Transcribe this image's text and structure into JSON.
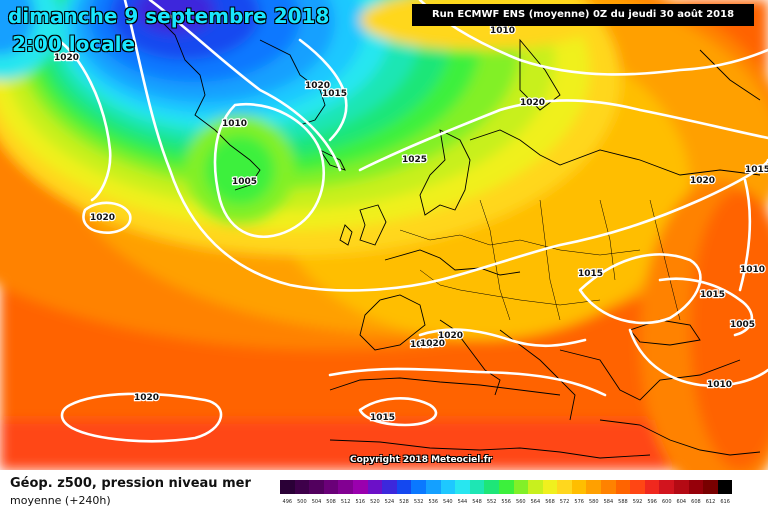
{
  "header": {
    "date": "dimanche 9 septembre 2018",
    "time": "2:00 locale",
    "run": "Run ECMWF ENS (moyenne) 0Z du jeudi 30 août 2018"
  },
  "copyright": "Copyright 2018 Meteociel.fr",
  "footer": {
    "title": "Géop. z500, pression niveau mer",
    "subtitle": "moyenne   (+240h)"
  },
  "pressure_labels": [
    {
      "text": "1020"
    },
    {
      "text": "1010"
    },
    {
      "text": "1020"
    },
    {
      "text": "1015"
    },
    {
      "text": "1010"
    },
    {
      "text": "1005"
    },
    {
      "text": "1020"
    },
    {
      "text": "1020"
    },
    {
      "text": "1025"
    },
    {
      "text": "1020"
    },
    {
      "text": "1015"
    },
    {
      "text": "1020"
    },
    {
      "text": "1015"
    },
    {
      "text": "1010"
    },
    {
      "text": "1015"
    },
    {
      "text": "1005"
    },
    {
      "text": "1020"
    },
    {
      "text": "1020"
    },
    {
      "text": "1020"
    },
    {
      "text": "1015"
    },
    {
      "text": "1010"
    }
  ],
  "colors": {
    "isobar": "#ffffff",
    "coastline": "#000000"
  },
  "geopotential_scale": [
    {
      "value": "496",
      "color": "#2a0036"
    },
    {
      "value": "500",
      "color": "#3e004a"
    },
    {
      "value": "504",
      "color": "#52005e"
    },
    {
      "value": "508",
      "color": "#6a0078"
    },
    {
      "value": "512",
      "color": "#820092"
    },
    {
      "value": "516",
      "color": "#9a00ae"
    },
    {
      "value": "520",
      "color": "#6c10c8"
    },
    {
      "value": "524",
      "color": "#3c28dc"
    },
    {
      "value": "528",
      "color": "#1448f0"
    },
    {
      "value": "532",
      "color": "#0a78ff"
    },
    {
      "value": "536",
      "color": "#14a0ff"
    },
    {
      "value": "540",
      "color": "#1ec8ff"
    },
    {
      "value": "544",
      "color": "#28e6f0"
    },
    {
      "value": "548",
      "color": "#1ee6b4"
    },
    {
      "value": "552",
      "color": "#1ee678"
    },
    {
      "value": "556",
      "color": "#3cf03c"
    },
    {
      "value": "560",
      "color": "#82f028"
    },
    {
      "value": "564",
      "color": "#c8f01e"
    },
    {
      "value": "568",
      "color": "#f0f01e"
    },
    {
      "value": "572",
      "color": "#ffd71e"
    },
    {
      "value": "576",
      "color": "#ffbe00"
    },
    {
      "value": "580",
      "color": "#ffa000"
    },
    {
      "value": "584",
      "color": "#ff8200"
    },
    {
      "value": "588",
      "color": "#ff6400"
    },
    {
      "value": "592",
      "color": "#ff4614"
    },
    {
      "value": "596",
      "color": "#f0281e"
    },
    {
      "value": "600",
      "color": "#d2141e"
    },
    {
      "value": "604",
      "color": "#b40a14"
    },
    {
      "value": "608",
      "color": "#96000a"
    },
    {
      "value": "612",
      "color": "#780000"
    },
    {
      "value": "616",
      "color": "#000000"
    }
  ]
}
